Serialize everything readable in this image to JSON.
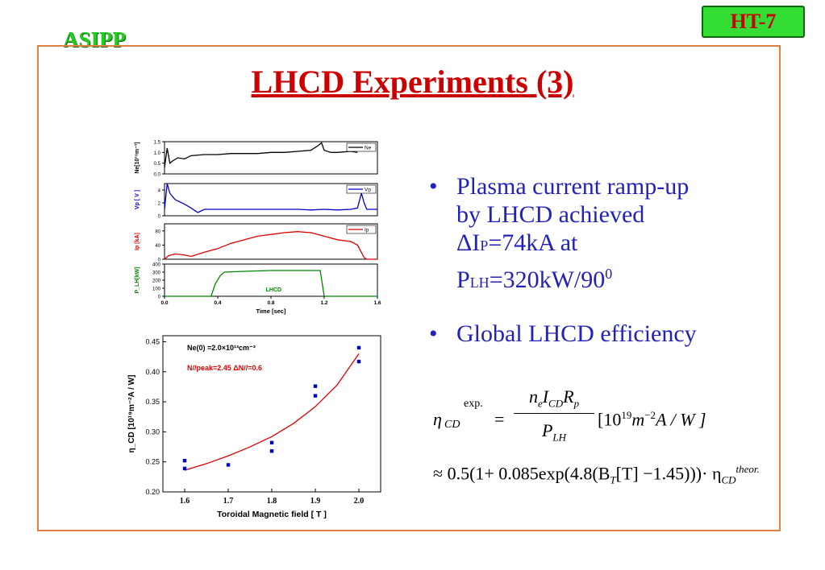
{
  "badge": "HT-7",
  "brand": "ASIPP",
  "title": "LHCD Experiments (3)",
  "bullets": {
    "b1_line1": "Plasma current ramp-up",
    "b1_line2": "by LHCD achieved",
    "b1_delta": "ΔI",
    "b1_p": "P",
    "b1_val": "=74kA at",
    "b1_plh": "P",
    "b1_lh": "LH",
    "b1_power": "=320kW/90",
    "b1_sup": "0",
    "b2": "Global LHCD efficiency"
  },
  "formula": {
    "eta": "η",
    "cd": "CD",
    "exp": "exp.",
    "num": "n",
    "num_e": "e",
    "num_i": "I",
    "num_cd": "CD",
    "num_r": "R",
    "num_p": "p",
    "den": "P",
    "den_lh": "LH",
    "units": "[10",
    "units_19": "19",
    "units_m": "m",
    "units_m2": "−2",
    "units_aw": "A / W ]",
    "line2": "≈ 0.5(1+ 0.085exp(4.8(B",
    "line2_t": "T",
    "line2_rest": "[T] −1.45)))· η",
    "line2_cd": "CD",
    "line2_theor": "theor."
  },
  "colors": {
    "title": "#cc0000",
    "bullets": "#2222bb",
    "frame": "#e08040",
    "badge": "#33dd33"
  },
  "chart_data": [
    {
      "type": "line",
      "xlabel": "Time [sec]",
      "x_ticks": [
        "0.0",
        "0.4",
        "0.8",
        "1.2",
        "1.6"
      ],
      "xlim": [
        0,
        1.6
      ],
      "panels": [
        {
          "ylabel": "Ne[10¹⁹m⁻³]",
          "yticks": [
            "0.0",
            "0.5",
            "1.0",
            "1.5"
          ],
          "ylim": [
            0,
            1.5
          ],
          "legend": "Ne",
          "color": "#000000",
          "x": [
            0.0,
            0.02,
            0.04,
            0.06,
            0.1,
            0.15,
            0.2,
            0.3,
            0.4,
            0.5,
            0.6,
            0.7,
            0.8,
            0.9,
            1.0,
            1.1,
            1.15,
            1.18,
            1.2,
            1.25,
            1.3,
            1.4,
            1.45
          ],
          "y": [
            0.3,
            1.2,
            0.5,
            0.6,
            0.75,
            0.7,
            0.85,
            0.9,
            0.9,
            0.95,
            0.95,
            0.95,
            1.0,
            1.0,
            1.05,
            1.1,
            1.3,
            1.45,
            1.1,
            1.0,
            1.0,
            1.05,
            1.0
          ]
        },
        {
          "ylabel": "Vp [ V ]",
          "yticks": [
            "0",
            "2",
            "4"
          ],
          "ylim": [
            0,
            5
          ],
          "legend": "Vp",
          "color": "#0000cc",
          "x": [
            0.0,
            0.02,
            0.04,
            0.08,
            0.15,
            0.2,
            0.25,
            0.3,
            0.4,
            0.6,
            0.8,
            1.0,
            1.1,
            1.2,
            1.3,
            1.4,
            1.45,
            1.48,
            1.5,
            1.52,
            1.6
          ],
          "y": [
            1.0,
            5.0,
            3.5,
            2.5,
            1.8,
            1.2,
            0.5,
            1.0,
            1.0,
            1.0,
            1.0,
            1.0,
            0.9,
            1.0,
            0.9,
            1.0,
            1.2,
            3.5,
            2.0,
            1.0,
            1.0
          ]
        },
        {
          "ylabel": "Ip [kA]",
          "yticks": [
            "0",
            "40",
            "80"
          ],
          "ylim": [
            0,
            100
          ],
          "legend": "Ip",
          "color": "#dd0000",
          "x": [
            0.0,
            0.03,
            0.08,
            0.15,
            0.2,
            0.3,
            0.4,
            0.5,
            0.6,
            0.7,
            0.8,
            0.9,
            1.0,
            1.1,
            1.2,
            1.3,
            1.4,
            1.45,
            1.5,
            1.52,
            1.6
          ],
          "y": [
            0,
            10,
            15,
            12,
            8,
            20,
            30,
            45,
            55,
            65,
            70,
            75,
            78,
            75,
            65,
            55,
            50,
            40,
            5,
            0,
            0
          ]
        },
        {
          "ylabel": "P_LH[kW]",
          "yticks": [
            "0",
            "100",
            "200",
            "300",
            "400"
          ],
          "ylim": [
            0,
            400
          ],
          "legend": "",
          "annotation": "LHCD",
          "color": "#008800",
          "x": [
            0.0,
            0.35,
            0.38,
            0.42,
            0.45,
            0.6,
            0.8,
            1.0,
            1.15,
            1.17,
            1.2,
            1.6
          ],
          "y": [
            0,
            0,
            150,
            260,
            300,
            310,
            320,
            320,
            320,
            320,
            0,
            0
          ]
        }
      ]
    },
    {
      "type": "scatter",
      "xlabel": "Toroidal Magnetic field [ T ]",
      "ylabel": "η_CD [10¹⁹m⁻²A / W]",
      "xlim": [
        1.55,
        2.05
      ],
      "ylim": [
        0.2,
        0.46
      ],
      "x_ticks": [
        "1.6",
        "1.7",
        "1.8",
        "1.9",
        "2.0"
      ],
      "y_ticks": [
        "0.20",
        "0.25",
        "0.30",
        "0.35",
        "0.40",
        "0.45"
      ],
      "annotation1": "Ne(0) =2.0×10¹³cm⁻³",
      "annotation2": "N//peak=2.45   ΔN//=0.6",
      "points": {
        "x": [
          1.6,
          1.6,
          1.7,
          1.8,
          1.8,
          1.9,
          1.9,
          2.0,
          2.0
        ],
        "y": [
          0.252,
          0.239,
          0.245,
          0.282,
          0.268,
          0.376,
          0.36,
          0.44,
          0.417
        ]
      },
      "fit": {
        "x": [
          1.6,
          1.65,
          1.7,
          1.75,
          1.8,
          1.85,
          1.9,
          1.95,
          2.0
        ],
        "y": [
          0.236,
          0.247,
          0.26,
          0.275,
          0.292,
          0.314,
          0.342,
          0.378,
          0.43
        ]
      },
      "point_color": "#0000cc",
      "fit_color": "#dd0000"
    }
  ]
}
